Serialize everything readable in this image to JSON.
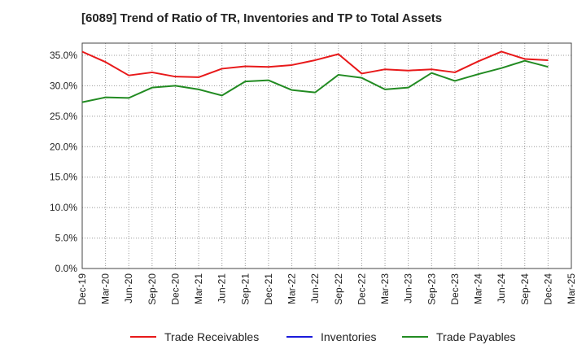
{
  "chart_data": {
    "type": "line",
    "title": "[6089]  Trend of Ratio of TR, Inventories and TP to Total Assets",
    "xlabel": "",
    "ylabel": "",
    "x": [
      "Dec-19",
      "Mar-20",
      "Jun-20",
      "Sep-20",
      "Dec-20",
      "Mar-21",
      "Jun-21",
      "Sep-21",
      "Dec-21",
      "Mar-22",
      "Jun-22",
      "Sep-22",
      "Dec-22",
      "Mar-23",
      "Jun-23",
      "Sep-23",
      "Dec-23",
      "Mar-24",
      "Jun-24",
      "Sep-24",
      "Dec-24",
      "Mar-25"
    ],
    "x_tick_labels": [
      "Dec-19",
      "Mar-20",
      "Jun-20",
      "Sep-20",
      "Dec-20",
      "Mar-21",
      "Jun-21",
      "Sep-21",
      "Dec-21",
      "Mar-22",
      "Jun-22",
      "Sep-22",
      "Dec-22",
      "Mar-23",
      "Jun-23",
      "Sep-23",
      "Dec-23",
      "Mar-24",
      "Jun-24",
      "Sep-24",
      "Dec-24",
      "Mar-25"
    ],
    "y_tick_labels": [
      "0.0%",
      "5.0%",
      "10.0%",
      "15.0%",
      "20.0%",
      "25.0%",
      "30.0%",
      "35.0%"
    ],
    "y_ticks": [
      0,
      5,
      10,
      15,
      20,
      25,
      30,
      35
    ],
    "ylim": [
      0,
      37
    ],
    "grid": true,
    "legend_position": "bottom",
    "series": [
      {
        "name": "Trade Receivables",
        "color": "#e8191a",
        "values": [
          35.6,
          33.9,
          31.7,
          32.2,
          31.5,
          31.4,
          32.8,
          33.2,
          33.1,
          33.4,
          34.2,
          35.2,
          32.0,
          32.7,
          32.5,
          32.7,
          32.2,
          34.0,
          35.6,
          34.4,
          34.2,
          null
        ]
      },
      {
        "name": "Inventories",
        "color": "#1a1adb",
        "values": [
          null,
          null,
          null,
          null,
          null,
          null,
          null,
          null,
          null,
          null,
          null,
          null,
          null,
          null,
          null,
          null,
          null,
          null,
          null,
          null,
          null,
          null
        ]
      },
      {
        "name": "Trade Payables",
        "color": "#228b22",
        "values": [
          27.3,
          28.1,
          28.0,
          29.7,
          30.0,
          29.4,
          28.4,
          30.7,
          30.9,
          29.3,
          28.9,
          31.8,
          31.3,
          29.4,
          29.7,
          32.1,
          30.8,
          31.9,
          32.9,
          34.1,
          33.1,
          null
        ]
      }
    ]
  }
}
